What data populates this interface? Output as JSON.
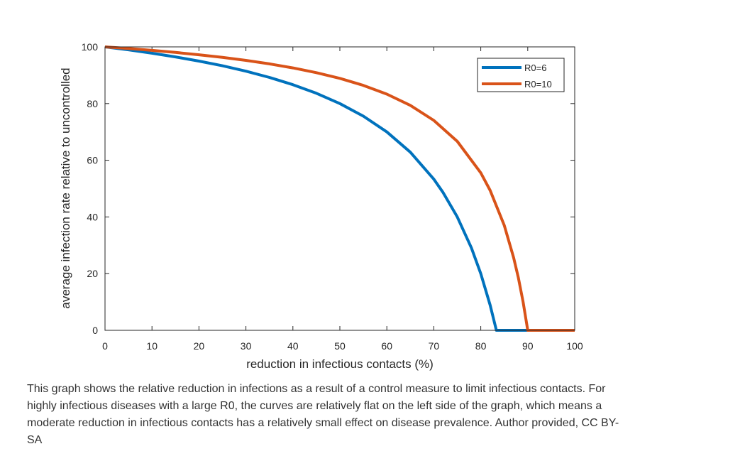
{
  "chart_data": {
    "type": "line",
    "title": "",
    "xlabel": "reduction in infectious contacts (%)",
    "ylabel": "average infection rate relative to uncontrolled",
    "xlim": [
      0,
      100
    ],
    "ylim": [
      0,
      100
    ],
    "xticks": [
      0,
      10,
      20,
      30,
      40,
      50,
      60,
      70,
      80,
      90,
      100
    ],
    "yticks": [
      0,
      20,
      40,
      60,
      80,
      100
    ],
    "grid": false,
    "legend_position": "top-right",
    "series": [
      {
        "name": "R0=6",
        "color": "#0072BD",
        "x": [
          0,
          5,
          10,
          15,
          20,
          25,
          30,
          35,
          40,
          45,
          50,
          55,
          60,
          65,
          70,
          72,
          75,
          78,
          80,
          82,
          83.33,
          85,
          90,
          95,
          100
        ],
        "y": [
          100,
          98.95,
          97.78,
          96.47,
          95.0,
          93.33,
          91.43,
          89.23,
          86.67,
          83.64,
          80.0,
          75.56,
          70.0,
          62.86,
          53.33,
          48.57,
          40.0,
          29.09,
          20.0,
          8.89,
          0,
          0,
          0,
          0,
          0
        ]
      },
      {
        "name": "R0=10",
        "color": "#D95319",
        "x": [
          0,
          5,
          10,
          15,
          20,
          25,
          30,
          35,
          40,
          45,
          50,
          55,
          60,
          65,
          70,
          75,
          80,
          82,
          85,
          87,
          88,
          89,
          90,
          95,
          100
        ],
        "y": [
          100,
          99.42,
          98.77,
          98.04,
          97.22,
          96.3,
          95.24,
          94.02,
          92.59,
          90.91,
          88.89,
          86.42,
          83.33,
          79.37,
          74.07,
          66.67,
          55.56,
          49.38,
          37.04,
          25.64,
          18.52,
          10.1,
          0,
          0,
          0
        ]
      }
    ]
  },
  "caption": "This graph shows the relative reduction in infections as a result of a control measure to limit infectious contacts. For highly infectious diseases with a large R0, the curves are relatively flat on the left side of the graph, which means a moderate reduction in infectious contacts has a relatively small effect on disease prevalence. Author provided, CC BY-SA"
}
